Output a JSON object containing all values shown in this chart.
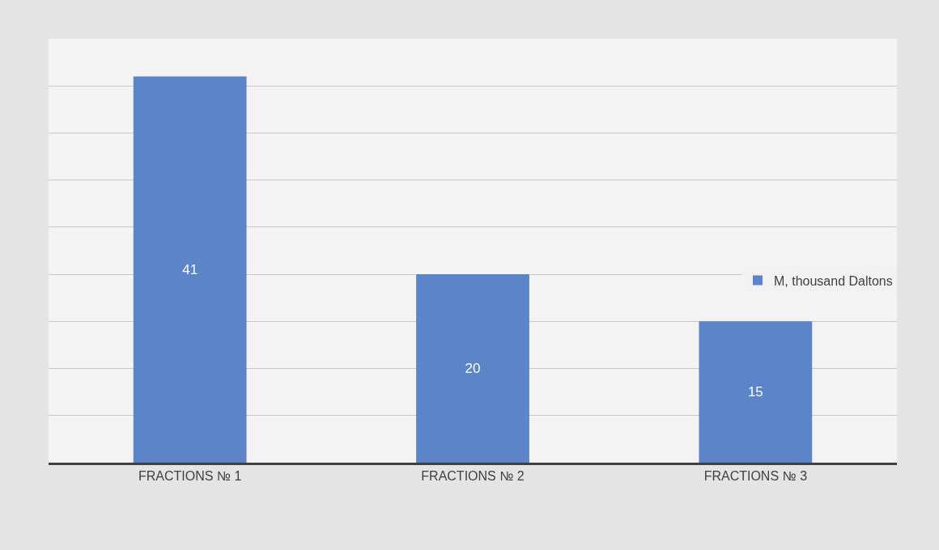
{
  "chart_data": {
    "type": "bar",
    "categories": [
      "FRACTIONS № 1",
      "FRACTIONS № 2",
      "FRACTIONS № 3"
    ],
    "series": [
      {
        "name": "M, thousand Daltons",
        "color": "#5b84c9",
        "values": [
          41,
          20,
          15
        ]
      }
    ],
    "ylim": [
      0,
      45
    ],
    "yticks": [
      {
        "value": 0,
        "label": null
      },
      {
        "value": 5,
        "label": null
      },
      {
        "value": 10,
        "label": null
      },
      {
        "value": 15,
        "label": null
      },
      {
        "value": 20,
        "label": null
      },
      {
        "value": 25,
        "label": null
      },
      {
        "value": 30,
        "label": null
      },
      {
        "value": 35,
        "label": null
      },
      {
        "value": 40,
        "label": null
      },
      {
        "value": 45,
        "label": null
      }
    ],
    "tick_labels": "x",
    "grid": "y",
    "legend": "right",
    "data_labels": true
  }
}
